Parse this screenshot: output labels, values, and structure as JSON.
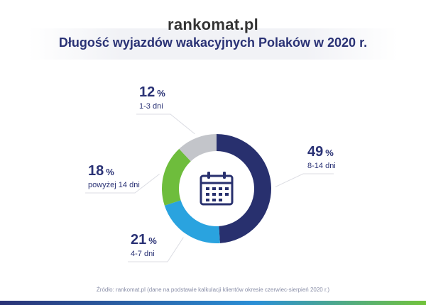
{
  "brand": {
    "logo_text": "rankomat.pl"
  },
  "title": "Długość wyjazdów wakacyjnych Polaków w 2020 r.",
  "source": "Źródło: rankomat.pl (dane na podstawie kalkulacji klientów okresie czerwiec-sierpień 2020 r.)",
  "colors": {
    "navy": "#28306e",
    "light_blue": "#2aa3df",
    "green": "#6ebd3c",
    "gray": "#c3c5ca",
    "text": "#2a3275"
  },
  "center_icon": "calendar-icon",
  "chart_data": {
    "type": "pie",
    "title": "Długość wyjazdów wakacyjnych Polaków w 2020 r.",
    "unit": "%",
    "slices": [
      {
        "label": "8-14 dni",
        "value": 49,
        "color": "#28306e"
      },
      {
        "label": "4-7 dni",
        "value": 21,
        "color": "#2aa3df"
      },
      {
        "label": "powyżej 14 dni",
        "value": 18,
        "color": "#6ebd3c"
      },
      {
        "label": "1-3 dni",
        "value": 12,
        "color": "#c3c5ca"
      }
    ]
  }
}
